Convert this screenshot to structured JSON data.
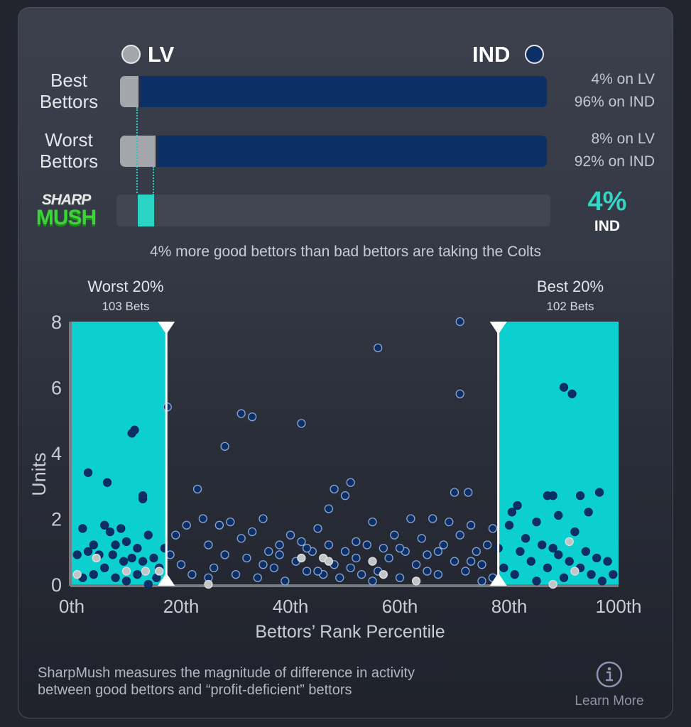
{
  "header": {
    "away_team": "LV",
    "home_team": "IND"
  },
  "rows": [
    {
      "label_line1": "Best",
      "label_line2": "Bettors",
      "away_pct": 4,
      "home_pct": 96,
      "away_text": "4% on LV",
      "home_text": "96% on IND"
    },
    {
      "label_line1": "Worst",
      "label_line2": "Bettors",
      "away_pct": 8,
      "home_pct": 92,
      "away_text": "8% on LV",
      "home_text": "92% on IND"
    }
  ],
  "sharpmush": {
    "logo_line1": "SHARP",
    "logo_line2": "MUSH",
    "value": "4%",
    "team": "IND",
    "diff_pct": 4
  },
  "caption": "4% more good bettors than bad bettors are taking the Colts",
  "colors": {
    "cyan": "#0ccfd0",
    "navy": "#0c2f66",
    "gray": "#a3a6aa",
    "teal": "#35d6c5"
  },
  "chart_data": {
    "type": "scatter",
    "xlabel": "Bettors’ Rank Percentile",
    "ylabel": "Units",
    "xlim": [
      0,
      100
    ],
    "ylim": [
      0,
      8
    ],
    "xticks": [
      "0th",
      "20th",
      "40th",
      "60th",
      "80th",
      "100th"
    ],
    "yticks": [
      "0",
      "2",
      "4",
      "6",
      "8"
    ],
    "regions": [
      {
        "name": "Worst 20%",
        "sub": "103 Bets",
        "from": 0,
        "to": 17.3
      },
      {
        "name": "Best 20%",
        "sub": "102 Bets",
        "from": 78,
        "to": 100
      }
    ],
    "points_ind": [
      [
        17.5,
        5.4
      ],
      [
        11,
        4.6
      ],
      [
        11.5,
        4.7
      ],
      [
        3,
        3.4
      ],
      [
        6.5,
        3.1
      ],
      [
        13,
        2.6
      ],
      [
        13,
        2.7
      ],
      [
        28,
        4.2
      ],
      [
        31,
        5.2
      ],
      [
        33,
        5.1
      ],
      [
        42,
        4.9
      ],
      [
        23,
        2.9
      ],
      [
        48,
        2.9
      ],
      [
        51,
        3.1
      ],
      [
        50,
        2.7
      ],
      [
        47,
        2.3
      ],
      [
        56,
        7.2
      ],
      [
        71,
        8
      ],
      [
        71,
        5.8
      ],
      [
        70,
        2.8
      ],
      [
        72.5,
        2.8
      ],
      [
        90,
        6
      ],
      [
        91.5,
        5.8
      ],
      [
        81.5,
        2.4
      ],
      [
        87,
        2.7
      ],
      [
        88,
        2.7
      ],
      [
        93,
        2.7
      ],
      [
        96.5,
        2.8
      ],
      [
        89,
        2.1
      ],
      [
        94.5,
        2.2
      ],
      [
        85,
        1.9
      ],
      [
        77,
        1.7
      ],
      [
        80.5,
        2.2
      ],
      [
        2,
        1.7
      ],
      [
        6,
        1.8
      ],
      [
        7,
        1.6
      ],
      [
        9,
        1.7
      ],
      [
        14,
        1.5
      ],
      [
        4,
        1.2
      ],
      [
        8,
        1.2
      ],
      [
        10,
        1.3
      ],
      [
        12,
        1.1
      ],
      [
        1,
        0.9
      ],
      [
        3,
        1.0
      ],
      [
        5,
        0.9
      ],
      [
        7.5,
        0.9
      ],
      [
        9.5,
        0.7
      ],
      [
        11,
        0.8
      ],
      [
        13,
        0.7
      ],
      [
        15,
        0.8
      ],
      [
        16,
        0.5
      ],
      [
        2,
        0.2
      ],
      [
        4,
        0.3
      ],
      [
        6,
        0.5
      ],
      [
        8,
        0.2
      ],
      [
        10,
        0.1
      ],
      [
        12,
        0.3
      ],
      [
        14,
        0
      ],
      [
        15.5,
        0.2
      ],
      [
        17,
        1.1
      ],
      [
        18,
        0.9
      ],
      [
        19,
        1.5
      ],
      [
        20,
        0.6
      ],
      [
        21,
        1.8
      ],
      [
        22,
        0.3
      ],
      [
        24,
        2.0
      ],
      [
        25,
        1.2
      ],
      [
        26,
        0.5
      ],
      [
        27,
        1.8
      ],
      [
        28,
        0.9
      ],
      [
        29,
        1.9
      ],
      [
        30,
        0.3
      ],
      [
        31,
        1.4
      ],
      [
        32,
        0.8
      ],
      [
        33,
        1.6
      ],
      [
        34,
        0.2
      ],
      [
        35,
        2.0
      ],
      [
        36,
        1.0
      ],
      [
        37,
        0.5
      ],
      [
        38,
        1.2
      ],
      [
        39,
        0.1
      ],
      [
        40,
        1.5
      ],
      [
        41,
        0.7
      ],
      [
        42,
        1.3
      ],
      [
        43,
        0.4
      ],
      [
        44,
        1.0
      ],
      [
        45,
        1.7
      ],
      [
        46,
        0.3
      ],
      [
        47,
        1.2
      ],
      [
        48,
        0.6
      ],
      [
        49,
        0.2
      ],
      [
        50,
        1.0
      ],
      [
        51,
        0.5
      ],
      [
        52,
        0.8
      ],
      [
        53,
        0.3
      ],
      [
        54,
        1.2
      ],
      [
        55,
        1.9
      ],
      [
        56,
        0.4
      ],
      [
        57,
        1.1
      ],
      [
        58,
        0.8
      ],
      [
        59,
        1.5
      ],
      [
        60,
        0.2
      ],
      [
        61,
        1.0
      ],
      [
        62,
        2.0
      ],
      [
        63,
        0.6
      ],
      [
        64,
        1.4
      ],
      [
        65,
        0.9
      ],
      [
        66,
        2.0
      ],
      [
        67,
        0.3
      ],
      [
        68,
        1.2
      ],
      [
        69,
        1.9
      ],
      [
        70,
        0.7
      ],
      [
        71,
        1.5
      ],
      [
        72,
        0.4
      ],
      [
        73,
        1.8
      ],
      [
        74,
        1.0
      ],
      [
        75,
        0.6
      ],
      [
        76,
        1.2
      ],
      [
        77,
        0.2
      ],
      [
        78,
        1.1
      ],
      [
        79,
        0.5
      ],
      [
        80,
        1.8
      ],
      [
        81,
        0.3
      ],
      [
        82,
        1.0
      ],
      [
        83,
        1.4
      ],
      [
        84,
        0.7
      ],
      [
        85,
        0.1
      ],
      [
        86,
        1.2
      ],
      [
        87,
        0.5
      ],
      [
        88,
        1.1
      ],
      [
        89,
        0.9
      ],
      [
        90,
        0.2
      ],
      [
        91,
        0.7
      ],
      [
        92,
        1.6
      ],
      [
        93,
        0.5
      ],
      [
        94,
        1.0
      ],
      [
        95,
        0.3
      ],
      [
        96,
        0.8
      ],
      [
        97,
        0.1
      ],
      [
        98,
        0.7
      ],
      [
        99,
        0.3
      ],
      [
        35,
        0.6
      ],
      [
        45,
        0.4
      ],
      [
        55,
        0.1
      ],
      [
        65,
        0.4
      ],
      [
        75,
        0.1
      ],
      [
        25,
        0.2
      ],
      [
        60,
        1.1
      ],
      [
        52,
        1.3
      ],
      [
        38,
        0.9
      ],
      [
        43,
        1.1
      ],
      [
        67,
        1.0
      ],
      [
        73,
        0.7
      ]
    ],
    "points_lv": [
      [
        1,
        0.3
      ],
      [
        4.5,
        0.8
      ],
      [
        10,
        0.4
      ],
      [
        13.5,
        0.4
      ],
      [
        16,
        0.4
      ],
      [
        25,
        0
      ],
      [
        42,
        0.8
      ],
      [
        46,
        0.8
      ],
      [
        47,
        0.7
      ],
      [
        55,
        0.7
      ],
      [
        57,
        0.3
      ],
      [
        63,
        0.1
      ],
      [
        88,
        0
      ],
      [
        91,
        1.3
      ],
      [
        92,
        0.4
      ]
    ]
  },
  "footer": {
    "line1": "SharpMush measures the magnitude of difference in activity",
    "line2": "between good bettors and “profit-deficient” bettors",
    "learn_more": "Learn More"
  }
}
